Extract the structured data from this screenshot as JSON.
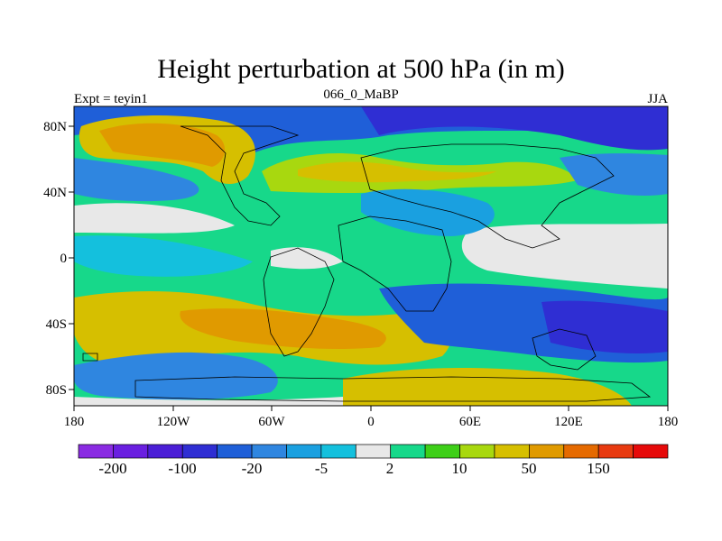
{
  "title": "Height perturbation at 500 hPa (in m)",
  "left_label": "Expt = teyin1",
  "center_label": "066_0_MaBP",
  "right_label": "JJA",
  "lon_ticks": [
    "180",
    "120W",
    "60W",
    "0",
    "60E",
    "120E",
    "180"
  ],
  "lat_ticks": [
    "80N",
    "40N",
    "0",
    "40S",
    "80S"
  ],
  "colorbar": {
    "colors": [
      "#8a2be2",
      "#6a1fe0",
      "#4b1ed6",
      "#2f2ed3",
      "#1f5fd8",
      "#2f86e0",
      "#1aa0e0",
      "#14c0dd",
      "#e8e8e8",
      "#17d88a",
      "#3ecf18",
      "#a8d80f",
      "#d6bf00",
      "#e09a00",
      "#e56a00",
      "#e83a10",
      "#e60a0a"
    ],
    "labels": [
      "-200",
      "-100",
      "-20",
      "-5",
      "2",
      "10",
      "50",
      "150"
    ]
  }
}
